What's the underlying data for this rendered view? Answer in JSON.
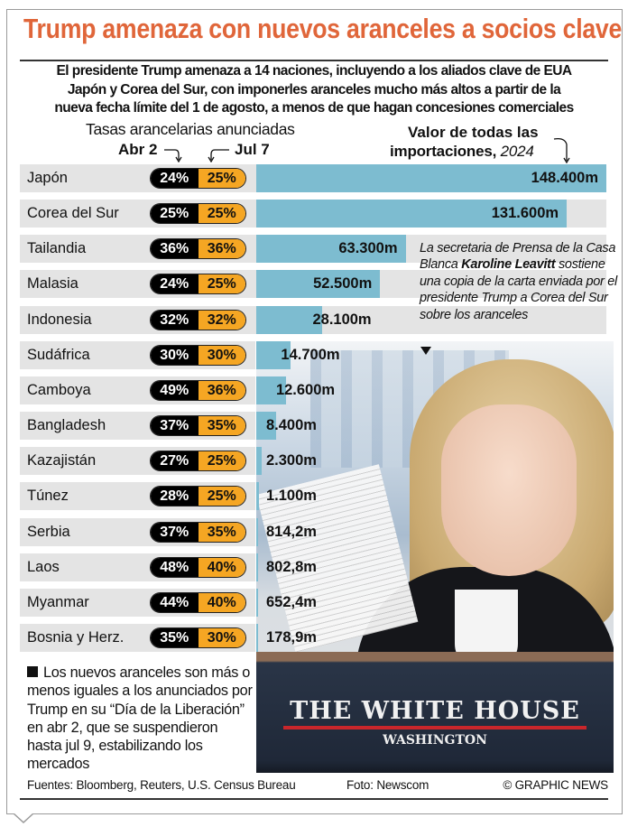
{
  "title": "Trump amenaza con nuevos aranceles a socios clave",
  "subtitle": [
    "El presidente Trump amenaza a 14 naciones, incluyendo a los aliados clave de  EUA",
    "Japón y Corea del Sur, con imponerles aranceles mucho más altos a partir de la",
    "nueva fecha límite del 1 de agosto, a menos de que hagan concesiones comerciales"
  ],
  "colors": {
    "title": "#e0663a",
    "apr_pill": "#000000",
    "jul_pill": "#f5a623",
    "bar": "#7dbcd0",
    "row_bg": "#e4e4e4"
  },
  "chart_data": {
    "type": "bar",
    "orientation": "horizontal",
    "rates_header": "Tasas arancelarias anunciadas",
    "rate_columns": [
      "Abr 2",
      "Jul 7"
    ],
    "value_header": "Valor de todas las",
    "value_header_2": "importaciones,",
    "value_header_year": "2024",
    "categories": [
      "Japón",
      "Corea del Sur",
      "Tailandia",
      "Malasia",
      "Indonesia",
      "Sudáfrica",
      "Camboya",
      "Bangladesh",
      "Kazajistán",
      "Túnez",
      "Serbia",
      "Laos",
      "Myanmar",
      "Bosnia y Herz."
    ],
    "rates_apr2": [
      "24%",
      "25%",
      "36%",
      "24%",
      "32%",
      "30%",
      "49%",
      "37%",
      "27%",
      "28%",
      "37%",
      "48%",
      "44%",
      "35%"
    ],
    "rates_jul7": [
      "25%",
      "25%",
      "36%",
      "25%",
      "32%",
      "30%",
      "36%",
      "35%",
      "25%",
      "25%",
      "35%",
      "40%",
      "40%",
      "30%"
    ],
    "values_musd": [
      148400,
      131600,
      63300,
      52500,
      28100,
      14700,
      12600,
      8400,
      2300,
      1100,
      814.2,
      802.8,
      652.4,
      178.9
    ],
    "value_labels": [
      "148.400m",
      "131.600m",
      "63.300m",
      "52.500m",
      "28.100m",
      "14.700m",
      "12.600m",
      "8.400m",
      "2.300m",
      "1.100m",
      "814,2m",
      "802,8m",
      "652,4m",
      "178,9m"
    ]
  },
  "photo": {
    "caption_pre": "La secretaria de Prensa de la Casa Blanca ",
    "caption_name": "Karoline Leavitt",
    "caption_post": " sostiene una copia de la carta enviada por el presidente Trump a Corea del Sur sobre los aranceles",
    "sign_line1": "THE WHITE HOUSE",
    "sign_line2": "WASHINGTON"
  },
  "note": "Los nuevos aranceles son más o menos iguales a los anunciados por Trump en su “Día de la Liberación” en abr 2, que se suspendieron hasta jul 9, estabilizando los mercados",
  "footer": {
    "sources": "Fuentes: Bloomberg, Reuters, U.S. Census Bureau",
    "photo": "Foto: Newscom",
    "credit": "© GRAPHIC NEWS"
  }
}
